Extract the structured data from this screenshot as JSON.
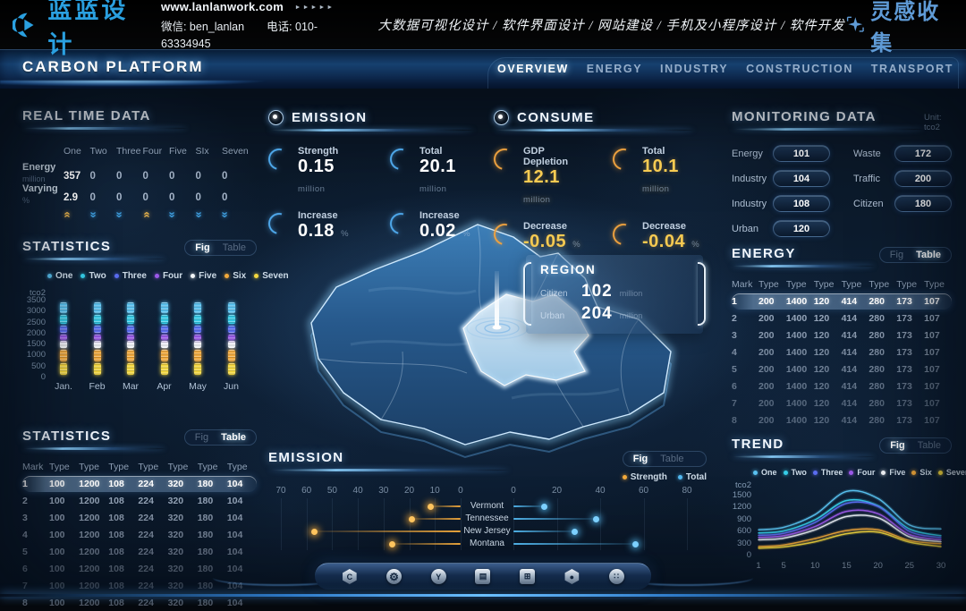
{
  "theme": {
    "accent_blue": "#52b8f0",
    "accent_gold": "#f2a93b",
    "accent_yellow": "#f5d93f",
    "bg": "#0b1826"
  },
  "banner": {
    "logo_text": "蓝蓝设计",
    "website": "www.lanlanwork.com",
    "arrows": "►►►►►",
    "wechat": "微信: ben_lanlan",
    "phone": "电话: 010-63334945",
    "services": "大数据可视化设计 / 软件界面设计 / 网站建设 / 手机及小程序设计 / 软件开发",
    "brand_right": "灵感收集"
  },
  "navbar": {
    "title": "CARBON PLATFORM",
    "items": [
      {
        "label": "OVERVIEW",
        "active": true
      },
      {
        "label": "ENERGY",
        "active": false
      },
      {
        "label": "INDUSTRY",
        "active": false
      },
      {
        "label": "CONSTRUCTION",
        "active": false
      },
      {
        "label": "TRANSPORT",
        "active": false
      }
    ]
  },
  "series_legend": [
    {
      "label": "One",
      "color": "#59c2f0"
    },
    {
      "label": "Two",
      "color": "#35cde8"
    },
    {
      "label": "Three",
      "color": "#5a6cf0"
    },
    {
      "label": "Four",
      "color": "#9b59e8"
    },
    {
      "label": "Five",
      "color": "#f2f5f8"
    },
    {
      "label": "Six",
      "color": "#f2a93b"
    },
    {
      "label": "Seven",
      "color": "#f5d93f"
    }
  ],
  "real_time_data": {
    "title": "REAL TIME DATA",
    "columns": [
      "One",
      "Two",
      "Three",
      "Four",
      "Five",
      "SIx",
      "Seven"
    ],
    "rows": [
      {
        "label": "Energy",
        "unit": "million",
        "values": [
          "357",
          "0",
          "0",
          "0",
          "0",
          "0",
          "0"
        ]
      },
      {
        "label": "Varying",
        "unit": "%",
        "values": [
          "2.9",
          "0",
          "0",
          "0",
          "0",
          "0",
          "0"
        ]
      }
    ],
    "trends": [
      "up",
      "down",
      "down",
      "up",
      "down",
      "down",
      "down"
    ]
  },
  "statistics_fig": {
    "title": "STATISTICS",
    "toggle": {
      "fig": "Fig",
      "table": "Table",
      "active": "fig"
    },
    "chart_data": {
      "type": "bar",
      "stacked": true,
      "categories": [
        "Jan.",
        "Feb",
        "Mar",
        "Apr",
        "May",
        "Jun"
      ],
      "ylabel": "tco2",
      "ylim": [
        0,
        3500
      ],
      "yticks": [
        0,
        500,
        1000,
        1500,
        2000,
        2500,
        3000,
        3500
      ],
      "segments": [
        {
          "name": "Seven",
          "color": "#f5d93f",
          "from": 50,
          "to": 580
        },
        {
          "name": "Six",
          "color": "#f2a93b",
          "from": 650,
          "to": 1200
        },
        {
          "name": "Five",
          "color": "#f2f5f8",
          "from": 1270,
          "to": 1570
        },
        {
          "name": "Four",
          "color": "#9b59e8",
          "from": 1610,
          "to": 1890
        },
        {
          "name": "Three",
          "color": "#5a6cf0",
          "from": 1960,
          "to": 2300
        },
        {
          "name": "Two",
          "color": "#35cde8",
          "from": 2370,
          "to": 2780
        },
        {
          "name": "One",
          "color": "#59c2f0",
          "from": 2850,
          "to": 3330
        }
      ],
      "note": "identical stack for all six months"
    }
  },
  "statistics_table": {
    "title": "STATISTICS",
    "toggle": {
      "fig": "Fig",
      "table": "Table",
      "active": "table"
    },
    "headers": [
      "Mark",
      "Type",
      "Type",
      "Type",
      "Type",
      "Type",
      "Type",
      "Type"
    ],
    "rows": [
      [
        "1",
        "100",
        "1200",
        "108",
        "224",
        "320",
        "180",
        "104"
      ],
      [
        "2",
        "100",
        "1200",
        "108",
        "224",
        "320",
        "180",
        "104"
      ],
      [
        "3",
        "100",
        "1200",
        "108",
        "224",
        "320",
        "180",
        "104"
      ],
      [
        "4",
        "100",
        "1200",
        "108",
        "224",
        "320",
        "180",
        "104"
      ],
      [
        "5",
        "100",
        "1200",
        "108",
        "224",
        "320",
        "180",
        "104"
      ],
      [
        "6",
        "100",
        "1200",
        "108",
        "224",
        "320",
        "180",
        "104"
      ],
      [
        "7",
        "100",
        "1200",
        "108",
        "224",
        "320",
        "180",
        "104"
      ],
      [
        "8",
        "100",
        "1200",
        "108",
        "224",
        "320",
        "180",
        "104"
      ]
    ]
  },
  "emission_panel": {
    "title": "EMISSION",
    "stats": [
      {
        "label": "Strength",
        "value": "0.15",
        "unit": "million"
      },
      {
        "label": "Total",
        "value": "20.1",
        "unit": "million"
      },
      {
        "label": "Increase",
        "value": "0.18",
        "unit": "%"
      },
      {
        "label": "Increase",
        "value": "0.02",
        "unit": "%"
      }
    ]
  },
  "consume_panel": {
    "title": "CONSUME",
    "stats": [
      {
        "label": "GDP Depletion",
        "value": "12.1",
        "unit": "million"
      },
      {
        "label": "Total",
        "value": "10.1",
        "unit": "million"
      },
      {
        "label": "Decrease",
        "value": "-0.05",
        "unit": "%"
      },
      {
        "label": "Decrease",
        "value": "-0.04",
        "unit": "%"
      }
    ]
  },
  "region_popup": {
    "title": "REGION",
    "rows": [
      {
        "label": "Citizen",
        "value": "102",
        "unit": "million"
      },
      {
        "label": "Urban",
        "value": "204",
        "unit": "million"
      }
    ]
  },
  "monitoring": {
    "title": "MONITORING DATA",
    "unit": "Unit: tco2",
    "left": [
      [
        "Energy",
        "101"
      ],
      [
        "Industry",
        "104"
      ],
      [
        "Industry",
        "108"
      ],
      [
        "Urban",
        "120"
      ]
    ],
    "right": [
      [
        "Waste",
        "172"
      ],
      [
        "Traffic",
        "200"
      ],
      [
        "Citizen",
        "180"
      ]
    ]
  },
  "energy_table": {
    "title": "ENERGY",
    "toggle": {
      "fig": "Fig",
      "table": "Table",
      "active": "table"
    },
    "headers": [
      "Mark",
      "Type",
      "Type",
      "Type",
      "Type",
      "Type",
      "Type",
      "Type"
    ],
    "rows": [
      [
        "1",
        "200",
        "1400",
        "120",
        "414",
        "280",
        "173",
        "107"
      ],
      [
        "2",
        "200",
        "1400",
        "120",
        "414",
        "280",
        "173",
        "107"
      ],
      [
        "3",
        "200",
        "1400",
        "120",
        "414",
        "280",
        "173",
        "107"
      ],
      [
        "4",
        "200",
        "1400",
        "120",
        "414",
        "280",
        "173",
        "107"
      ],
      [
        "5",
        "200",
        "1400",
        "120",
        "414",
        "280",
        "173",
        "107"
      ],
      [
        "6",
        "200",
        "1400",
        "120",
        "414",
        "280",
        "173",
        "107"
      ],
      [
        "7",
        "200",
        "1400",
        "120",
        "414",
        "280",
        "173",
        "107"
      ],
      [
        "8",
        "200",
        "1400",
        "120",
        "414",
        "280",
        "173",
        "107"
      ]
    ]
  },
  "emission_chart": {
    "title": "EMISSION",
    "toggle": {
      "fig": "Fig",
      "table": "Table",
      "active": "fig"
    },
    "legend": [
      {
        "label": "Strength",
        "color": "#f2a93b"
      },
      {
        "label": "Total",
        "color": "#52b8f0"
      }
    ],
    "chart_data": {
      "type": "bar",
      "orientation": "horizontal-diverging",
      "categories": [
        "Vermont",
        "Tennessee",
        "New Jersey",
        "Montana"
      ],
      "series": [
        {
          "name": "Strength",
          "axis": "left",
          "color": "#f2a93b",
          "values": [
            12,
            19,
            57,
            27
          ]
        },
        {
          "name": "Total",
          "axis": "right",
          "color": "#52b8f0",
          "values": [
            14,
            38,
            28,
            56
          ]
        }
      ],
      "left_axis_ticks": [
        70,
        60,
        50,
        40,
        30,
        20,
        10,
        0
      ],
      "right_axis_ticks": [
        0,
        20,
        40,
        60,
        80
      ]
    }
  },
  "trend": {
    "title": "TREND",
    "toggle": {
      "fig": "Fig",
      "table": "Table",
      "active": "fig"
    },
    "chart_data": {
      "type": "line",
      "ylabel": "tco2",
      "ylim": [
        0,
        1700
      ],
      "yticks": [
        0,
        300,
        600,
        900,
        1200,
        1500
      ],
      "xticks": [
        1,
        5,
        10,
        15,
        20,
        25,
        30
      ],
      "x": [
        1,
        5,
        10,
        15,
        20,
        25,
        30
      ],
      "series": [
        {
          "name": "One",
          "color": "#59c2f0",
          "values": [
            600,
            660,
            980,
            1560,
            1380,
            720,
            620
          ]
        },
        {
          "name": "Two",
          "color": "#35cde8",
          "values": [
            520,
            570,
            850,
            1330,
            1200,
            620,
            450
          ]
        },
        {
          "name": "Three",
          "color": "#5a6cf0",
          "values": [
            460,
            510,
            780,
            1260,
            1180,
            560,
            400
          ]
        },
        {
          "name": "Four",
          "color": "#9b59e8",
          "values": [
            410,
            450,
            680,
            1060,
            1000,
            480,
            350
          ]
        },
        {
          "name": "Five",
          "color": "#e8eef5",
          "values": [
            350,
            390,
            600,
            930,
            900,
            420,
            300
          ]
        },
        {
          "name": "Six",
          "color": "#f2a93b",
          "values": [
            180,
            220,
            380,
            580,
            600,
            330,
            250
          ]
        },
        {
          "name": "Seven",
          "color": "#f5d93f",
          "values": [
            140,
            170,
            300,
            500,
            540,
            290,
            180
          ]
        }
      ]
    }
  },
  "dock": {
    "icons": [
      {
        "name": "hexagon-c-icon",
        "glyph": "C",
        "shape": "hex"
      },
      {
        "name": "gear-icon",
        "glyph": "⚙",
        "shape": "circle"
      },
      {
        "name": "circle-y-icon",
        "glyph": "Y",
        "shape": "circle"
      },
      {
        "name": "charging-station-icon",
        "glyph": "▤",
        "shape": "rect"
      },
      {
        "name": "billboard-icon",
        "glyph": "⊞",
        "shape": "rect"
      },
      {
        "name": "nut-icon",
        "glyph": "●",
        "shape": "hex"
      },
      {
        "name": "dots-cluster-icon",
        "glyph": "∷",
        "shape": "circle"
      }
    ]
  }
}
